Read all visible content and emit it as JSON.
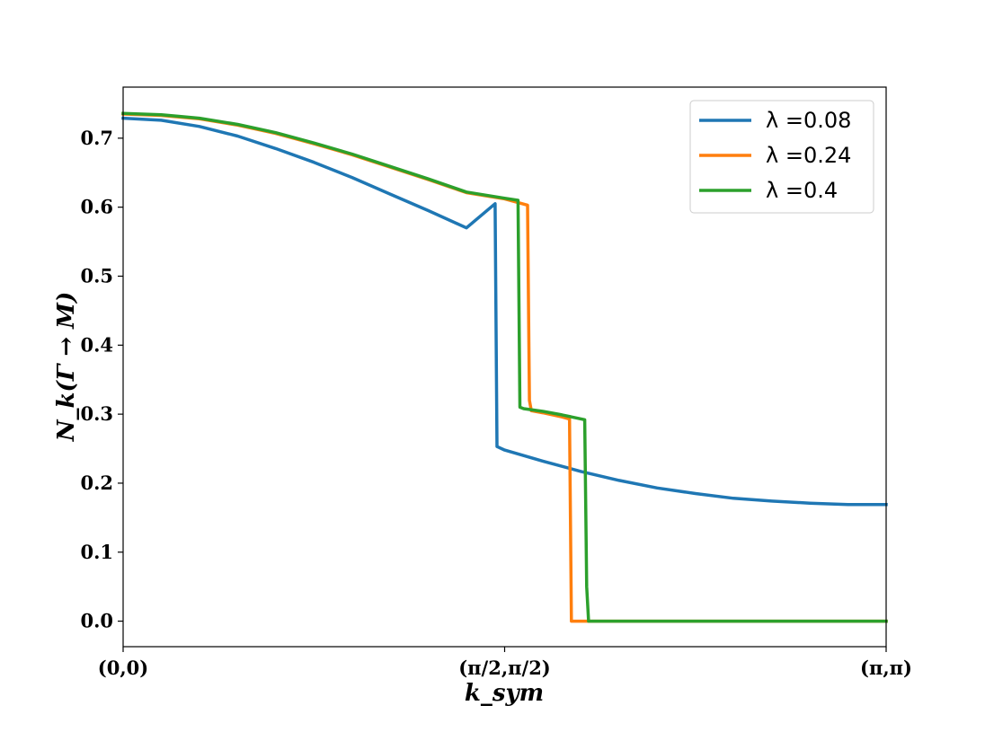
{
  "chart_data": {
    "type": "line",
    "xlabel": "k_sym",
    "ylabel": "N_k(Γ → M)",
    "x_ticks": [
      "(0,0)",
      "(π/2,π/2)",
      "(π,π)"
    ],
    "x_tick_values": [
      0,
      1,
      2
    ],
    "xlim": [
      0,
      2
    ],
    "ylim": [
      -0.037,
      0.774
    ],
    "y_ticks": [
      0.0,
      0.1,
      0.2,
      0.3,
      0.4,
      0.5,
      0.6,
      0.7
    ],
    "y_tick_labels": [
      "0.0",
      "0.1",
      "0.2",
      "0.3",
      "0.4",
      "0.5",
      "0.6",
      "0.7"
    ],
    "grid": false,
    "legend_position": "top-right",
    "series": [
      {
        "name": "λ =0.08",
        "color": "#1f77b4",
        "x": [
          0.0,
          0.1,
          0.2,
          0.3,
          0.4,
          0.5,
          0.6,
          0.7,
          0.8,
          0.9,
          0.975,
          0.98,
          1.0,
          1.1,
          1.2,
          1.3,
          1.4,
          1.5,
          1.6,
          1.7,
          1.8,
          1.9,
          2.0
        ],
        "y": [
          0.729,
          0.726,
          0.717,
          0.703,
          0.685,
          0.665,
          0.643,
          0.619,
          0.595,
          0.57,
          0.605,
          0.253,
          0.248,
          0.232,
          0.217,
          0.204,
          0.193,
          0.185,
          0.178,
          0.174,
          0.171,
          0.169,
          0.169
        ]
      },
      {
        "name": "λ =0.24",
        "color": "#ff7f0e",
        "x": [
          0.0,
          0.1,
          0.2,
          0.3,
          0.4,
          0.5,
          0.6,
          0.7,
          0.8,
          0.9,
          1.0,
          1.06,
          1.065,
          1.07,
          1.1,
          1.15,
          1.17,
          1.175,
          1.2,
          1.3,
          1.4,
          1.5,
          1.6,
          1.7,
          1.8,
          1.9,
          2.0
        ],
        "y": [
          0.735,
          0.733,
          0.728,
          0.719,
          0.707,
          0.692,
          0.676,
          0.658,
          0.64,
          0.621,
          0.612,
          0.603,
          0.32,
          0.305,
          0.302,
          0.296,
          0.293,
          0.0,
          0.0,
          0.0,
          0.0,
          0.0,
          0.0,
          0.0,
          0.0,
          0.0,
          0.0
        ]
      },
      {
        "name": "λ =0.4",
        "color": "#2ca02c",
        "x": [
          0.0,
          0.1,
          0.2,
          0.3,
          0.4,
          0.5,
          0.6,
          0.7,
          0.8,
          0.9,
          1.0,
          1.035,
          1.04,
          1.05,
          1.1,
          1.15,
          1.21,
          1.215,
          1.22,
          1.3,
          1.4,
          1.5,
          1.6,
          1.7,
          1.8,
          1.9,
          2.0
        ],
        "y": [
          0.736,
          0.734,
          0.729,
          0.72,
          0.708,
          0.693,
          0.677,
          0.659,
          0.641,
          0.622,
          0.613,
          0.61,
          0.31,
          0.308,
          0.304,
          0.299,
          0.292,
          0.05,
          0.0,
          0.0,
          0.0,
          0.0,
          0.0,
          0.0,
          0.0,
          0.0,
          0.0
        ]
      }
    ]
  }
}
